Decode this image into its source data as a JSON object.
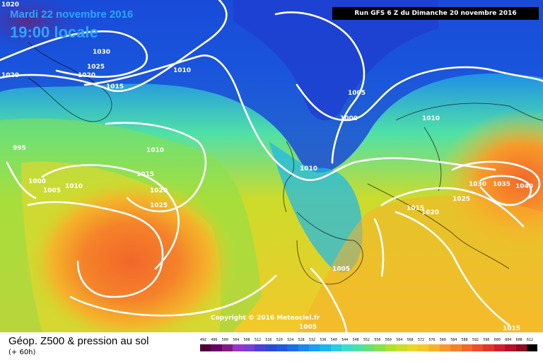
{
  "header": {
    "date": "Mardi 22 novembre 2016",
    "time": "19:00 locale",
    "run": "Run GFS 6 Z du Dimanche 20 novembre 2016"
  },
  "footer": {
    "title": "Géop. Z500 & pression au sol",
    "subtitle": "(+ 60h)",
    "copyright": "Copyright © 2016 Meteociel.fr"
  },
  "isobar_labels": [
    "1020",
    "1030",
    "1025",
    "1020",
    "1010",
    "1015",
    "1005",
    "1000",
    "1010",
    "995",
    "1010",
    "1015",
    "1000",
    "1005",
    "1010",
    "1020",
    "1025",
    "1010",
    "1005",
    "1015",
    "1020",
    "1025",
    "1030",
    "1035",
    "1040",
    "1005",
    "1015",
    "1020"
  ],
  "scale": {
    "labels": [
      "492",
      "496",
      "500",
      "504",
      "508",
      "512",
      "516",
      "520",
      "524",
      "528",
      "532",
      "536",
      "540",
      "544",
      "548",
      "552",
      "556",
      "560",
      "564",
      "568",
      "572",
      "576",
      "580",
      "584",
      "588",
      "592",
      "596",
      "600",
      "604",
      "608",
      "612"
    ],
    "colors": [
      "#4d0033",
      "#660066",
      "#801a80",
      "#9933cc",
      "#7a3dd6",
      "#4b3fe0",
      "#2a4bd7",
      "#1e5adf",
      "#1a6ee6",
      "#1a86ee",
      "#1aa0f0",
      "#1ab6ee",
      "#2bcbe6",
      "#3fdccc",
      "#4fe0a8",
      "#66e07a",
      "#88e04a",
      "#aee030",
      "#ccdc2a",
      "#e8d829",
      "#f4c82a",
      "#f7b12a",
      "#f79a2a",
      "#f5822a",
      "#f2672a",
      "#ec4e2a",
      "#e2352a",
      "#d21f2a",
      "#b5102a",
      "#8f0a1e",
      "#000000"
    ]
  },
  "colors": {
    "header_text": "#2fa4ff",
    "isobar": "#ffffff"
  }
}
